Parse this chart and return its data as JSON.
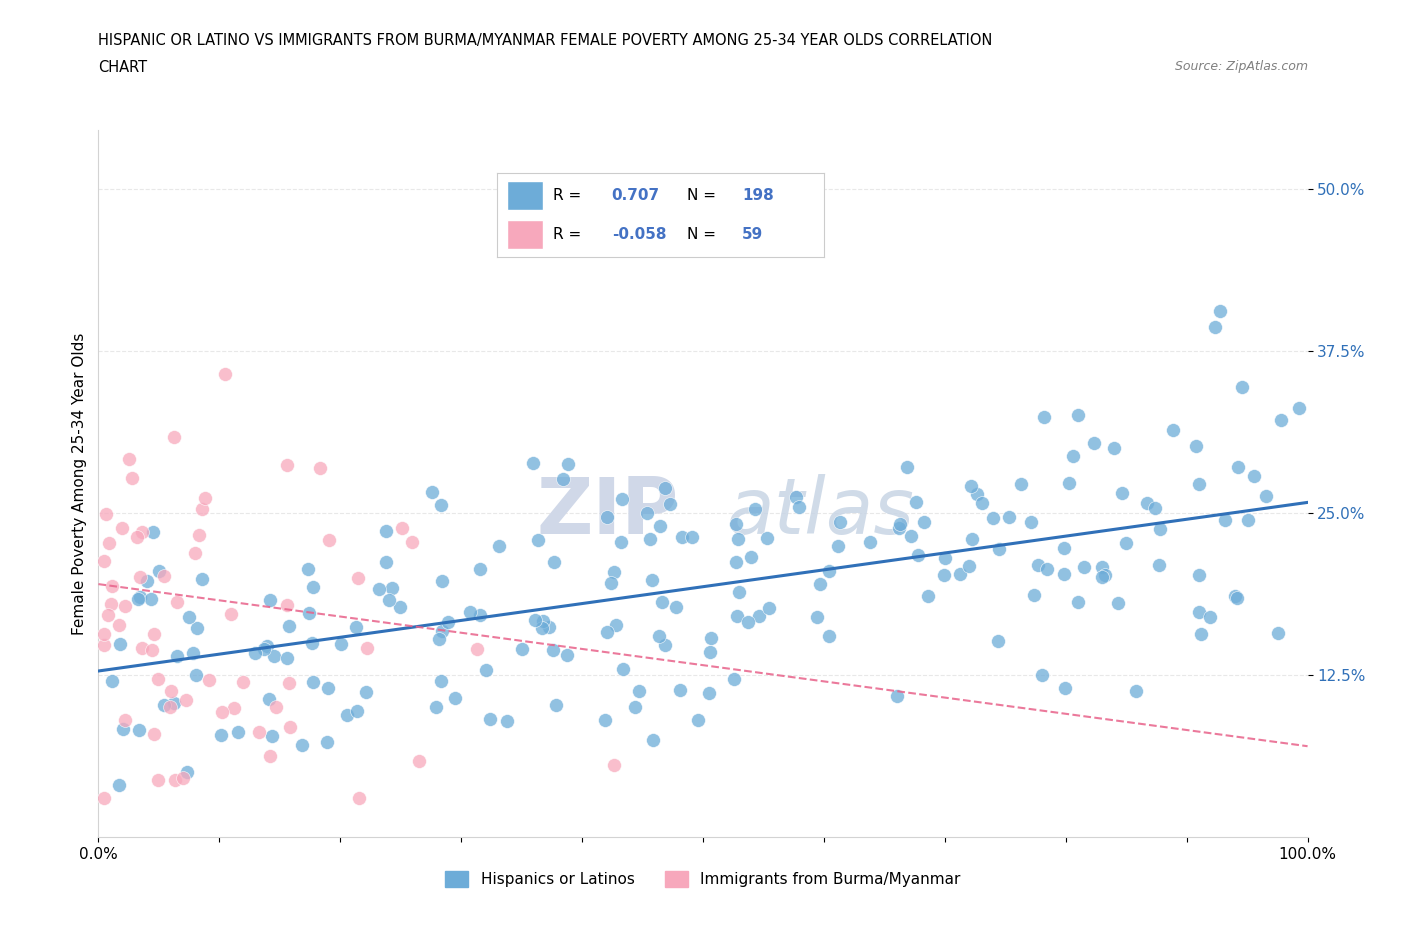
{
  "title_line1": "HISPANIC OR LATINO VS IMMIGRANTS FROM BURMA/MYANMAR FEMALE POVERTY AMONG 25-34 YEAR OLDS CORRELATION",
  "title_line2": "CHART",
  "source_text": "Source: ZipAtlas.com",
  "ylabel": "Female Poverty Among 25-34 Year Olds",
  "xlim": [
    0.0,
    1.0
  ],
  "ylim": [
    0.0,
    0.545
  ],
  "ytick_positions": [
    0.125,
    0.25,
    0.375,
    0.5
  ],
  "ytick_labels": [
    "12.5%",
    "25.0%",
    "37.5%",
    "50.0%"
  ],
  "blue_color": "#6dacd8",
  "pink_color": "#f7a8bc",
  "blue_line_color": "#3070b8",
  "pink_line_color": "#e8628a",
  "legend_R1": "0.707",
  "legend_N1": "198",
  "legend_R2": "-0.058",
  "legend_N2": "59",
  "legend_label1": "Hispanics or Latinos",
  "legend_label2": "Immigrants from Burma/Myanmar",
  "watermark_zip": "ZIP",
  "watermark_atlas": "atlas",
  "watermark_color": "#d0d8e8",
  "blue_trendline_x": [
    0.0,
    1.0
  ],
  "blue_trendline_y": [
    0.128,
    0.258
  ],
  "pink_trendline_x": [
    0.0,
    1.0
  ],
  "pink_trendline_y": [
    0.195,
    0.07
  ]
}
